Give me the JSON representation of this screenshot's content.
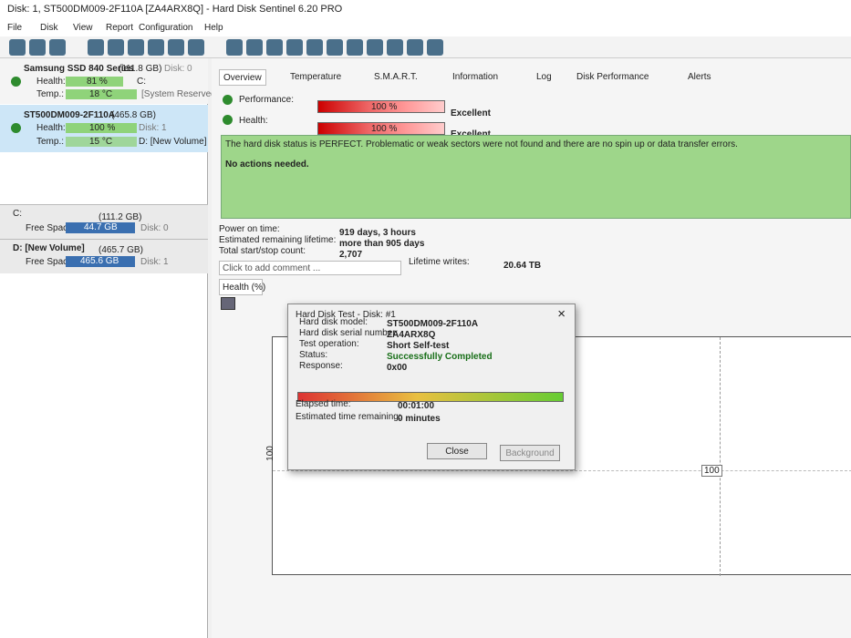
{
  "window": {
    "title": "Disk: 1, ST500DM009-2F110A [ZA4ARX8Q] - Hard Disk Sentinel 6.20 PRO",
    "menu": [
      "File",
      "Disk",
      "View",
      "Report",
      "Configuration",
      "Help"
    ]
  },
  "disks": [
    {
      "name": "Samsung SSD 840 Series",
      "size": "(111.8 GB)",
      "disk": "Disk: 0",
      "health_label": "Health:",
      "health": {
        "value": 81,
        "label": "81 %"
      },
      "temp_label": "Temp.:",
      "temp": "18 °C",
      "volume": "C:",
      "volume2": "[System Reserved]"
    },
    {
      "name": "ST500DM009-2F110A",
      "size": "(465.8 GB)",
      "disk": "Disk: 1",
      "health_label": "Health:",
      "health": {
        "value": 100,
        "label": "100 %"
      },
      "temp_label": "Temp.:",
      "temp": "15 °C",
      "volume": "D: [New Volume]"
    }
  ],
  "volumes": [
    {
      "name": "C:",
      "size": "(111.2 GB)",
      "free_label": "Free Space",
      "free": "44.7 GB",
      "disk": "Disk: 0"
    },
    {
      "name": "D: [New Volume]",
      "size": "(465.7 GB)",
      "free_label": "Free Space",
      "free": "465.6 GB",
      "disk": "Disk: 1"
    }
  ],
  "tabs": [
    "Overview",
    "Temperature",
    "S.M.A.R.T.",
    "Information",
    "Log",
    "Disk Performance",
    "Alerts"
  ],
  "overview": {
    "performance": {
      "label": "Performance:",
      "value": 100,
      "value_label": "100 %",
      "rating": "Excellent"
    },
    "health": {
      "label": "Health:",
      "value": 100,
      "value_label": "100 %",
      "rating": "Excellent"
    },
    "status": "The hard disk status is PERFECT. Problematic or weak sectors were not found and there are no spin up or data transfer errors.",
    "actions": "No actions needed.",
    "stats": [
      [
        "Power on time:",
        "919 days, 3 hours"
      ],
      [
        "Estimated remaining lifetime:",
        "more than 905 days"
      ],
      [
        "Total start/stop count:",
        "2,707"
      ]
    ],
    "lifetime_writes_label": "Lifetime writes:",
    "lifetime_writes": "20.64 TB",
    "comment": "Click to add comment ...",
    "chart_tab": "Health (%)",
    "chart_axis": "100",
    "chart_point": "100"
  },
  "dialog": {
    "title": "Hard Disk Test - Disk: #1",
    "fields": [
      [
        "Hard disk model:",
        "ST500DM009-2F110A"
      ],
      [
        "Hard disk serial number:",
        "ZA4ARX8Q"
      ],
      [
        "Test operation:",
        "Short Self-test"
      ],
      [
        "Status:",
        "Successfully Completed"
      ],
      [
        "Response:",
        "0x00"
      ]
    ],
    "times": [
      [
        "Elapsed time:",
        "00:01:00"
      ],
      [
        "Estimated time remaining:",
        "0 minutes"
      ]
    ],
    "buttons": [
      "Close",
      "Background"
    ]
  }
}
